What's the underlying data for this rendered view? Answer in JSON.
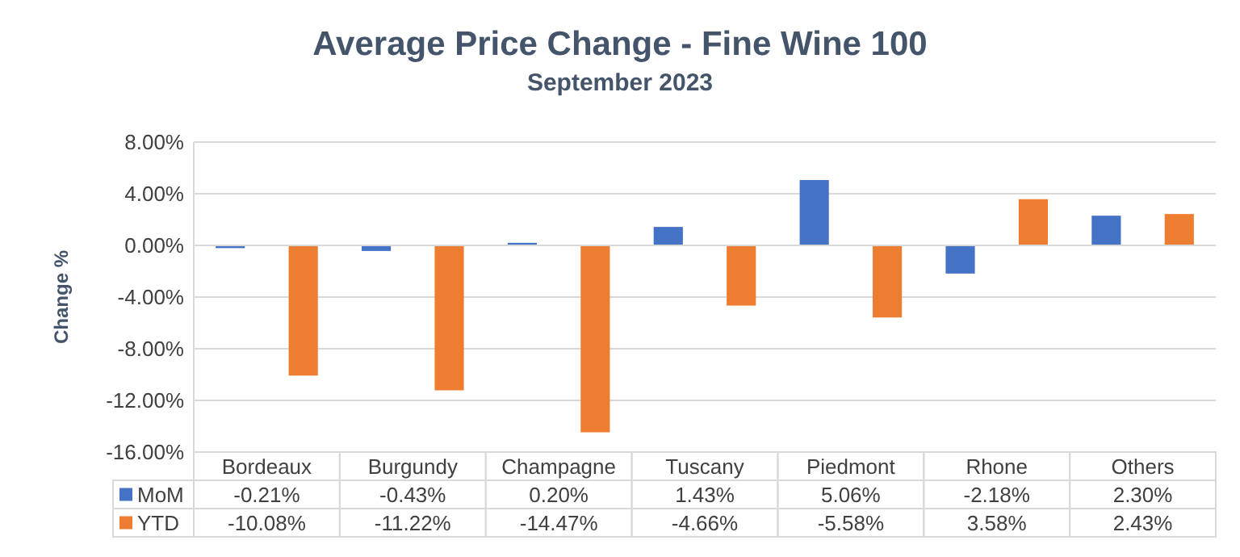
{
  "chart_data": {
    "type": "bar",
    "title": "Average Price Change - Fine Wine 100",
    "subtitle": "September 2023",
    "ylabel": "Change %",
    "categories": [
      "Bordeaux",
      "Burgundy",
      "Champagne",
      "Tuscany",
      "Piedmont",
      "Rhone",
      "Others"
    ],
    "series": [
      {
        "name": "MoM",
        "color": "#4472c4",
        "values": [
          -0.21,
          -0.43,
          0.2,
          1.43,
          5.06,
          -2.18,
          2.3
        ],
        "value_labels": [
          "-0.21%",
          "-0.43%",
          "0.20%",
          "1.43%",
          "5.06%",
          "-2.18%",
          "2.30%"
        ]
      },
      {
        "name": "YTD",
        "color": "#ed7d31",
        "values": [
          -10.08,
          -11.22,
          -14.47,
          -4.66,
          -5.58,
          3.58,
          2.43
        ],
        "value_labels": [
          "-10.08%",
          "-11.22%",
          "-14.47%",
          "-4.66%",
          "-5.58%",
          "3.58%",
          "2.43%"
        ]
      }
    ],
    "ylim": [
      -16,
      8
    ],
    "yticks": [
      {
        "value": -16,
        "label": "-16.00%"
      },
      {
        "value": -12,
        "label": "-12.00%"
      },
      {
        "value": -8,
        "label": "-8.00%"
      },
      {
        "value": -4,
        "label": "-4.00%"
      },
      {
        "value": 0,
        "label": "0.00%"
      },
      {
        "value": 4,
        "label": "4.00%"
      },
      {
        "value": 8,
        "label": "8.00%"
      }
    ],
    "grid": "y",
    "legend": "bottom"
  }
}
